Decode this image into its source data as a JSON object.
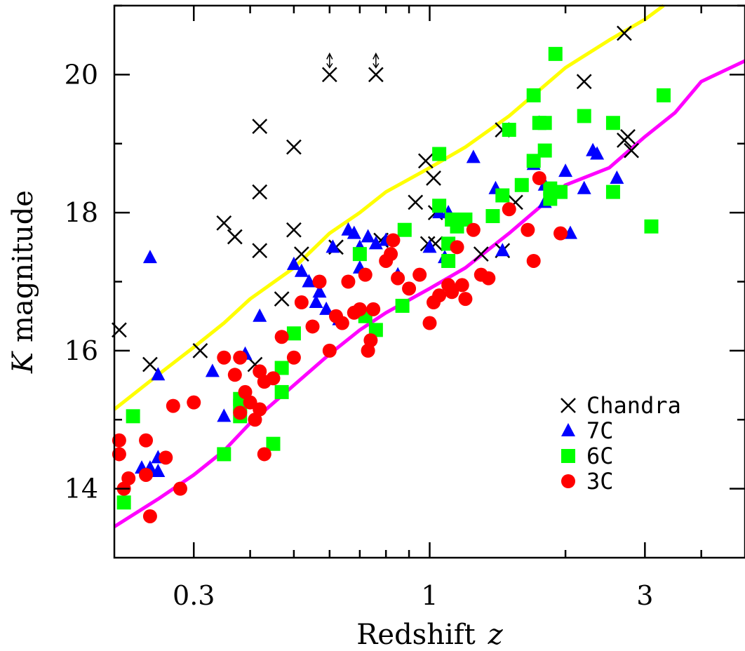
{
  "chart_data": {
    "type": "scatter",
    "xlabel": "Redshift",
    "xlabel_var": "z",
    "ylabel_var": "K",
    "ylabel": "magnitude",
    "x_scale": "log",
    "xlim": [
      0.2,
      5.0
    ],
    "ylim": [
      13.0,
      21.0
    ],
    "x_ticks": [
      {
        "value": 0.3,
        "label": "0.3"
      },
      {
        "value": 1,
        "label": "1"
      },
      {
        "value": 3,
        "label": "3"
      }
    ],
    "x_minor_ticks": [
      0.4,
      0.5,
      0.6,
      0.7,
      0.8,
      0.9,
      2,
      4
    ],
    "y_ticks": [
      {
        "value": 14,
        "label": "14"
      },
      {
        "value": 16,
        "label": "16"
      },
      {
        "value": 18,
        "label": "18"
      },
      {
        "value": 20,
        "label": "20"
      }
    ],
    "y_minor_ticks": [
      15,
      17,
      19,
      21
    ],
    "legend_position": "bottom-right",
    "curves": [
      {
        "color": "#ffff00",
        "x": [
          0.2,
          0.25,
          0.3,
          0.35,
          0.4,
          0.5,
          0.6,
          0.7,
          0.8,
          1.0,
          1.2,
          1.5,
          2.0,
          2.5,
          3.0,
          3.3
        ],
        "y": [
          15.15,
          15.65,
          16.05,
          16.4,
          16.75,
          17.2,
          17.7,
          18.0,
          18.3,
          18.65,
          18.95,
          19.4,
          20.1,
          20.5,
          20.8,
          21.0
        ]
      },
      {
        "color": "#ff00ff",
        "x": [
          0.2,
          0.25,
          0.3,
          0.35,
          0.4,
          0.5,
          0.6,
          0.7,
          0.8,
          1.0,
          1.2,
          1.5,
          2.0,
          2.5,
          3.0,
          3.5,
          4.0,
          5.0
        ],
        "y": [
          13.45,
          13.85,
          14.2,
          14.55,
          14.95,
          15.5,
          15.95,
          16.3,
          16.55,
          16.9,
          17.2,
          17.7,
          18.4,
          18.65,
          19.1,
          19.45,
          19.9,
          20.2
        ]
      }
    ],
    "series": [
      {
        "name": "Chandra",
        "marker": "cross",
        "color": "#000000",
        "points": [
          [
            0.205,
            16.3
          ],
          [
            0.24,
            15.8
          ],
          [
            0.31,
            16.0
          ],
          [
            0.35,
            17.85
          ],
          [
            0.37,
            17.65
          ],
          [
            0.42,
            19.25
          ],
          [
            0.42,
            18.3
          ],
          [
            0.42,
            17.45
          ],
          [
            0.41,
            15.8
          ],
          [
            0.47,
            16.75
          ],
          [
            0.5,
            18.95
          ],
          [
            0.5,
            17.75
          ],
          [
            0.52,
            17.4
          ],
          [
            0.6,
            20.0
          ],
          [
            0.62,
            17.5
          ],
          [
            0.76,
            20.0
          ],
          [
            0.78,
            17.6
          ],
          [
            0.93,
            18.15
          ],
          [
            0.98,
            18.75
          ],
          [
            1.02,
            18.5
          ],
          [
            1.03,
            18.0
          ],
          [
            0.99,
            17.55
          ],
          [
            1.03,
            17.55
          ],
          [
            1.3,
            17.4
          ],
          [
            1.45,
            17.45
          ],
          [
            1.45,
            19.2
          ],
          [
            1.55,
            18.15
          ],
          [
            2.2,
            19.9
          ],
          [
            2.7,
            20.6
          ],
          [
            2.7,
            19.05
          ],
          [
            2.75,
            19.1
          ],
          [
            2.8,
            18.9
          ]
        ]
      },
      {
        "name": "7C",
        "marker": "triangle",
        "color": "#0000ff",
        "points": [
          [
            0.24,
            17.35
          ],
          [
            0.25,
            15.65
          ],
          [
            0.24,
            14.3
          ],
          [
            0.23,
            14.3
          ],
          [
            0.25,
            14.45
          ],
          [
            0.25,
            14.25
          ],
          [
            0.33,
            15.7
          ],
          [
            0.35,
            15.05
          ],
          [
            0.39,
            15.95
          ],
          [
            0.42,
            16.5
          ],
          [
            0.5,
            17.25
          ],
          [
            0.52,
            17.15
          ],
          [
            0.54,
            17.0
          ],
          [
            0.56,
            16.7
          ],
          [
            0.57,
            16.85
          ],
          [
            0.59,
            16.6
          ],
          [
            0.61,
            17.5
          ],
          [
            0.63,
            16.45
          ],
          [
            0.66,
            17.75
          ],
          [
            0.68,
            17.7
          ],
          [
            0.7,
            17.5
          ],
          [
            0.7,
            17.2
          ],
          [
            0.73,
            17.65
          ],
          [
            0.76,
            17.55
          ],
          [
            0.8,
            17.6
          ],
          [
            0.85,
            17.1
          ],
          [
            1.0,
            17.5
          ],
          [
            1.05,
            18.0
          ],
          [
            1.08,
            17.35
          ],
          [
            1.1,
            18.0
          ],
          [
            1.25,
            18.8
          ],
          [
            1.4,
            18.35
          ],
          [
            1.45,
            17.45
          ],
          [
            1.7,
            18.7
          ],
          [
            1.75,
            19.3
          ],
          [
            1.8,
            18.15
          ],
          [
            1.8,
            18.4
          ],
          [
            2.0,
            18.6
          ],
          [
            2.05,
            17.7
          ],
          [
            2.2,
            18.35
          ],
          [
            2.3,
            18.9
          ],
          [
            2.35,
            18.85
          ],
          [
            2.6,
            18.5
          ]
        ]
      },
      {
        "name": "6C",
        "marker": "square",
        "color": "#00ff00",
        "points": [
          [
            0.21,
            13.8
          ],
          [
            0.22,
            15.05
          ],
          [
            0.35,
            14.5
          ],
          [
            0.38,
            15.2
          ],
          [
            0.38,
            15.05
          ],
          [
            0.38,
            15.3
          ],
          [
            0.45,
            14.65
          ],
          [
            0.47,
            15.75
          ],
          [
            0.47,
            15.4
          ],
          [
            0.5,
            16.25
          ],
          [
            0.7,
            17.4
          ],
          [
            0.72,
            16.5
          ],
          [
            0.76,
            16.3
          ],
          [
            0.87,
            16.65
          ],
          [
            0.88,
            17.75
          ],
          [
            1.05,
            18.1
          ],
          [
            1.05,
            18.85
          ],
          [
            1.1,
            17.55
          ],
          [
            1.1,
            17.3
          ],
          [
            1.12,
            17.9
          ],
          [
            1.15,
            17.8
          ],
          [
            1.2,
            17.9
          ],
          [
            1.38,
            17.95
          ],
          [
            1.45,
            18.25
          ],
          [
            1.5,
            19.2
          ],
          [
            1.6,
            18.4
          ],
          [
            1.7,
            19.7
          ],
          [
            1.7,
            18.75
          ],
          [
            1.75,
            19.3
          ],
          [
            1.8,
            19.3
          ],
          [
            1.8,
            18.9
          ],
          [
            1.85,
            18.2
          ],
          [
            1.85,
            18.35
          ],
          [
            1.9,
            20.3
          ],
          [
            1.95,
            18.3
          ],
          [
            2.2,
            19.4
          ],
          [
            2.55,
            19.3
          ],
          [
            2.55,
            18.3
          ],
          [
            3.1,
            17.8
          ],
          [
            3.3,
            19.7
          ]
        ]
      },
      {
        "name": "3C",
        "marker": "circle",
        "color": "#ff0000",
        "points": [
          [
            0.205,
            14.7
          ],
          [
            0.205,
            14.5
          ],
          [
            0.21,
            14.0
          ],
          [
            0.215,
            14.15
          ],
          [
            0.235,
            14.7
          ],
          [
            0.235,
            14.2
          ],
          [
            0.24,
            13.6
          ],
          [
            0.26,
            14.45
          ],
          [
            0.27,
            15.2
          ],
          [
            0.28,
            14.0
          ],
          [
            0.3,
            15.25
          ],
          [
            0.35,
            15.9
          ],
          [
            0.37,
            15.65
          ],
          [
            0.38,
            15.9
          ],
          [
            0.38,
            15.1
          ],
          [
            0.39,
            15.4
          ],
          [
            0.4,
            15.25
          ],
          [
            0.41,
            15.0
          ],
          [
            0.42,
            15.15
          ],
          [
            0.42,
            15.7
          ],
          [
            0.43,
            15.55
          ],
          [
            0.43,
            14.5
          ],
          [
            0.45,
            15.6
          ],
          [
            0.47,
            16.2
          ],
          [
            0.5,
            15.9
          ],
          [
            0.52,
            16.7
          ],
          [
            0.55,
            16.35
          ],
          [
            0.57,
            17.0
          ],
          [
            0.6,
            16.0
          ],
          [
            0.62,
            16.5
          ],
          [
            0.64,
            16.4
          ],
          [
            0.66,
            17.0
          ],
          [
            0.68,
            16.55
          ],
          [
            0.7,
            16.6
          ],
          [
            0.72,
            17.1
          ],
          [
            0.73,
            16.0
          ],
          [
            0.74,
            16.15
          ],
          [
            0.75,
            16.6
          ],
          [
            0.8,
            17.3
          ],
          [
            0.82,
            17.4
          ],
          [
            0.83,
            17.6
          ],
          [
            0.85,
            17.05
          ],
          [
            0.9,
            16.9
          ],
          [
            0.95,
            17.1
          ],
          [
            1.0,
            16.4
          ],
          [
            1.02,
            16.7
          ],
          [
            1.05,
            16.8
          ],
          [
            1.1,
            16.95
          ],
          [
            1.12,
            16.85
          ],
          [
            1.15,
            17.5
          ],
          [
            1.18,
            16.95
          ],
          [
            1.2,
            16.75
          ],
          [
            1.25,
            17.75
          ],
          [
            1.3,
            17.1
          ],
          [
            1.35,
            17.05
          ],
          [
            1.5,
            18.05
          ],
          [
            1.65,
            17.75
          ],
          [
            1.7,
            17.3
          ],
          [
            1.75,
            18.5
          ],
          [
            1.95,
            17.7
          ]
        ]
      }
    ],
    "legend": [
      {
        "label": "Chandra",
        "marker": "cross",
        "color": "#000000"
      },
      {
        "label": "7C",
        "marker": "triangle",
        "color": "#0000ff"
      },
      {
        "label": "6C",
        "marker": "square",
        "color": "#00ff00"
      },
      {
        "label": "3C",
        "marker": "circle",
        "color": "#ff0000"
      }
    ],
    "upper_limits": [
      [
        0.6,
        20.0
      ],
      [
        0.76,
        20.0
      ]
    ]
  }
}
